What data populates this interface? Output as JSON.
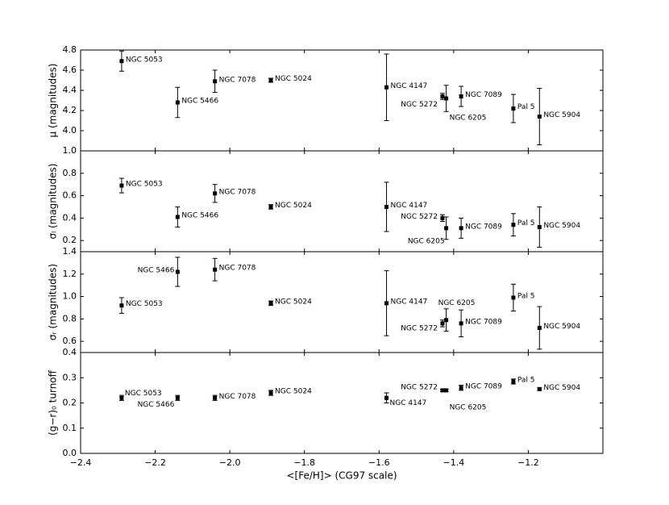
{
  "chart_data": {
    "type": "scatter",
    "xlabel": "<[Fe/H]> (CG97 scale)",
    "x": [
      -2.29,
      -2.14,
      -2.04,
      -1.89,
      -1.58,
      -1.43,
      -1.42,
      -1.38,
      -1.24,
      -1.17
    ],
    "point_labels": [
      "NGC 5053",
      "NGC 5466",
      "NGC 7078",
      "NGC 5024",
      "NGC 4147",
      "NGC 5272",
      "NGC 6205",
      "NGC 7089",
      "Pal 5",
      "NGC 5904"
    ],
    "xlim": [
      -2.4,
      -1.0
    ],
    "xticks": [
      {
        "value": -2.4,
        "label": "−2.4"
      },
      {
        "value": -2.2,
        "label": "−2.2"
      },
      {
        "value": -2.0,
        "label": "−2.0"
      },
      {
        "value": -1.8,
        "label": "−1.8"
      },
      {
        "value": -1.6,
        "label": "−1.6"
      },
      {
        "value": -1.4,
        "label": "−1.4"
      },
      {
        "value": -1.2,
        "label": "−1.2"
      }
    ],
    "color": "#000000",
    "panels": [
      {
        "ylabel": "μ (magnitudes)",
        "ylim": [
          3.8,
          4.8
        ],
        "yticks": [
          {
            "value": 4.0,
            "label": "4.0"
          },
          4.2,
          4.4,
          4.6,
          4.8
        ],
        "values": [
          4.69,
          4.28,
          4.49,
          4.5,
          4.43,
          4.34,
          4.32,
          4.34,
          4.22,
          4.14
        ],
        "errors": [
          0.1,
          0.15,
          0.11,
          0.02,
          0.33,
          0.03,
          0.13,
          0.1,
          0.14,
          0.28
        ]
      },
      {
        "ylabel": "σₗ (magnitudes)",
        "ylim": [
          0.1,
          1.0
        ],
        "yticks": [
          0.2,
          0.4,
          0.6,
          0.8,
          {
            "value": 1.0,
            "label": "1.0"
          }
        ],
        "values": [
          0.69,
          0.41,
          0.62,
          0.5,
          0.5,
          0.4,
          0.31,
          0.31,
          0.34,
          0.32
        ],
        "errors": [
          0.065,
          0.09,
          0.08,
          0.02,
          0.22,
          0.03,
          0.1,
          0.09,
          0.1,
          0.18
        ]
      },
      {
        "ylabel": "σᵣ (magnitudes)",
        "ylim": [
          0.5,
          1.4
        ],
        "yticks": [
          0.6,
          0.8,
          {
            "value": 1.0,
            "label": "1.0"
          },
          1.2,
          1.4
        ],
        "values": [
          0.92,
          1.22,
          1.24,
          0.94,
          0.94,
          0.76,
          0.79,
          0.76,
          0.99,
          0.72
        ],
        "errors": [
          0.07,
          0.13,
          0.1,
          0.02,
          0.29,
          0.03,
          0.1,
          0.12,
          0.12,
          0.19
        ]
      },
      {
        "ylabel": "(g−r)₀ turnoff",
        "ylim": [
          0.0,
          0.4
        ],
        "yticks": [
          {
            "value": 0.0,
            "label": "0.0"
          },
          0.1,
          0.2,
          0.3,
          0.4
        ],
        "values": [
          0.22,
          0.22,
          0.22,
          0.24,
          0.22,
          0.25,
          0.25,
          0.26,
          0.285,
          0.255
        ],
        "errors": [
          0.01,
          0.01,
          0.01,
          0.01,
          0.02,
          0.005,
          0.005,
          0.01,
          0.01,
          0.005
        ]
      }
    ]
  }
}
